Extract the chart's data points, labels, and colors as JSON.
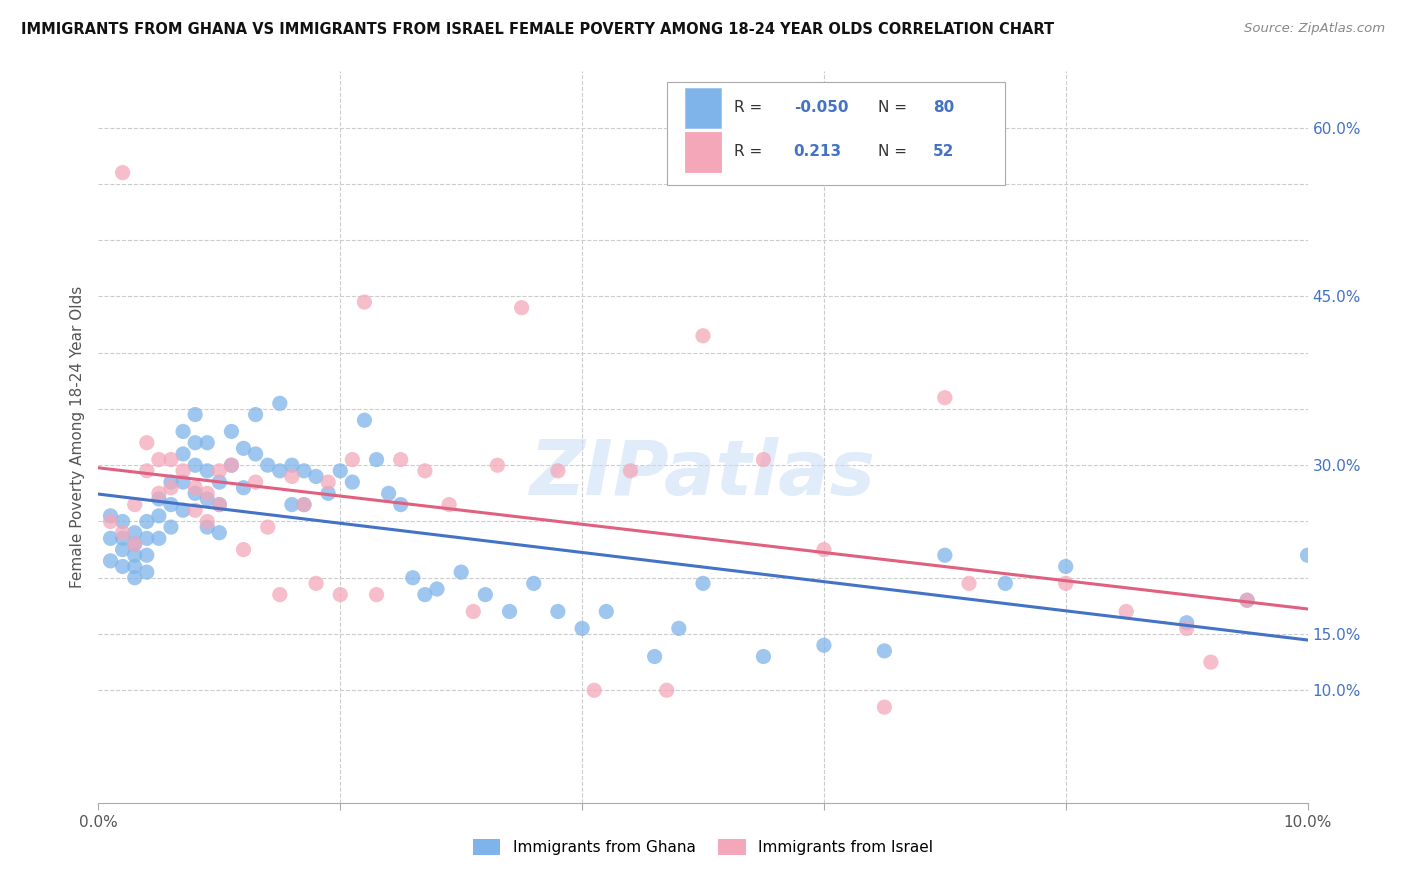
{
  "title": "IMMIGRANTS FROM GHANA VS IMMIGRANTS FROM ISRAEL FEMALE POVERTY AMONG 18-24 YEAR OLDS CORRELATION CHART",
  "source": "Source: ZipAtlas.com",
  "ylabel": "Female Poverty Among 18-24 Year Olds",
  "x_min": 0.0,
  "x_max": 0.1,
  "y_min": 0.0,
  "y_max": 0.65,
  "ghana_color": "#7eb4ea",
  "israel_color": "#f4a7b9",
  "ghana_line_color": "#4472c4",
  "israel_line_color": "#e06080",
  "ghana_R": -0.05,
  "ghana_N": 80,
  "israel_R": 0.213,
  "israel_N": 52,
  "ghana_scatter_x": [
    0.001,
    0.001,
    0.001,
    0.002,
    0.002,
    0.002,
    0.002,
    0.003,
    0.003,
    0.003,
    0.003,
    0.003,
    0.004,
    0.004,
    0.004,
    0.004,
    0.005,
    0.005,
    0.005,
    0.006,
    0.006,
    0.006,
    0.007,
    0.007,
    0.007,
    0.007,
    0.008,
    0.008,
    0.008,
    0.008,
    0.009,
    0.009,
    0.009,
    0.009,
    0.01,
    0.01,
    0.01,
    0.011,
    0.011,
    0.012,
    0.012,
    0.013,
    0.013,
    0.014,
    0.015,
    0.015,
    0.016,
    0.016,
    0.017,
    0.017,
    0.018,
    0.019,
    0.02,
    0.021,
    0.022,
    0.023,
    0.024,
    0.025,
    0.026,
    0.027,
    0.028,
    0.03,
    0.032,
    0.034,
    0.036,
    0.038,
    0.04,
    0.042,
    0.046,
    0.048,
    0.05,
    0.055,
    0.06,
    0.065,
    0.07,
    0.075,
    0.08,
    0.09,
    0.095,
    0.1
  ],
  "ghana_scatter_y": [
    0.255,
    0.235,
    0.215,
    0.25,
    0.235,
    0.225,
    0.21,
    0.24,
    0.23,
    0.22,
    0.21,
    0.2,
    0.25,
    0.235,
    0.22,
    0.205,
    0.27,
    0.255,
    0.235,
    0.285,
    0.265,
    0.245,
    0.33,
    0.31,
    0.285,
    0.26,
    0.345,
    0.32,
    0.3,
    0.275,
    0.32,
    0.295,
    0.27,
    0.245,
    0.285,
    0.265,
    0.24,
    0.33,
    0.3,
    0.315,
    0.28,
    0.345,
    0.31,
    0.3,
    0.355,
    0.295,
    0.3,
    0.265,
    0.295,
    0.265,
    0.29,
    0.275,
    0.295,
    0.285,
    0.34,
    0.305,
    0.275,
    0.265,
    0.2,
    0.185,
    0.19,
    0.205,
    0.185,
    0.17,
    0.195,
    0.17,
    0.155,
    0.17,
    0.13,
    0.155,
    0.195,
    0.13,
    0.14,
    0.135,
    0.22,
    0.195,
    0.21,
    0.16,
    0.18,
    0.22
  ],
  "israel_scatter_x": [
    0.001,
    0.002,
    0.002,
    0.003,
    0.003,
    0.004,
    0.004,
    0.005,
    0.005,
    0.006,
    0.006,
    0.007,
    0.008,
    0.008,
    0.009,
    0.009,
    0.01,
    0.01,
    0.011,
    0.012,
    0.013,
    0.014,
    0.015,
    0.016,
    0.017,
    0.018,
    0.019,
    0.02,
    0.021,
    0.022,
    0.023,
    0.025,
    0.027,
    0.029,
    0.031,
    0.033,
    0.035,
    0.038,
    0.041,
    0.044,
    0.047,
    0.05,
    0.055,
    0.06,
    0.065,
    0.07,
    0.072,
    0.08,
    0.085,
    0.09,
    0.092,
    0.095
  ],
  "israel_scatter_y": [
    0.25,
    0.56,
    0.24,
    0.265,
    0.23,
    0.32,
    0.295,
    0.305,
    0.275,
    0.305,
    0.28,
    0.295,
    0.28,
    0.26,
    0.275,
    0.25,
    0.295,
    0.265,
    0.3,
    0.225,
    0.285,
    0.245,
    0.185,
    0.29,
    0.265,
    0.195,
    0.285,
    0.185,
    0.305,
    0.445,
    0.185,
    0.305,
    0.295,
    0.265,
    0.17,
    0.3,
    0.44,
    0.295,
    0.1,
    0.295,
    0.1,
    0.415,
    0.305,
    0.225,
    0.085,
    0.36,
    0.195,
    0.195,
    0.17,
    0.155,
    0.125,
    0.18
  ],
  "watermark": "ZIPatlas",
  "background_color": "#ffffff",
  "grid_color": "#cccccc",
  "right_ticks": [
    0.1,
    0.15,
    0.2,
    0.25,
    0.3,
    0.35,
    0.4,
    0.45,
    0.5,
    0.55,
    0.6
  ],
  "right_tick_labels": [
    "10.0%",
    "15.0%",
    "",
    "",
    "30.0%",
    "",
    "",
    "45.0%",
    "",
    "",
    "60.0%"
  ]
}
